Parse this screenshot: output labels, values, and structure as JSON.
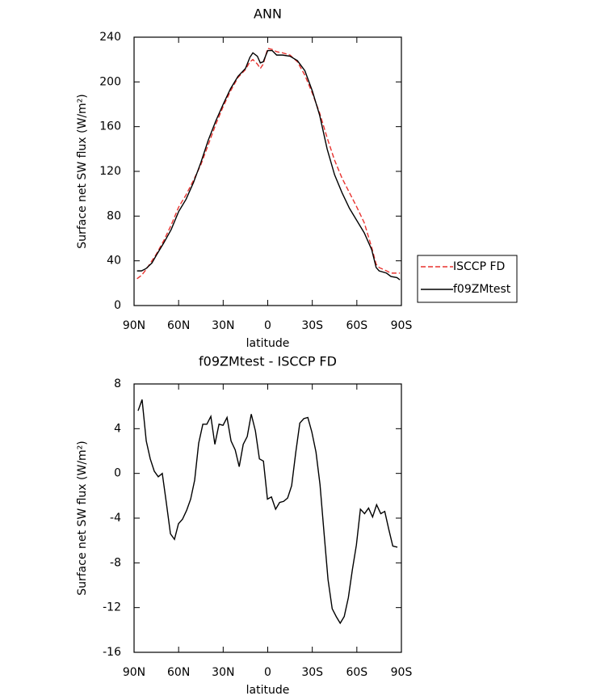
{
  "chart_data": [
    {
      "type": "line",
      "title": "ANN",
      "xlabel": "latitude",
      "ylabel": "Surface net SW flux (W/m²)",
      "x": [
        88,
        85,
        82,
        78,
        75,
        70,
        65,
        60,
        55,
        50,
        45,
        40,
        35,
        30,
        25,
        20,
        15,
        12,
        10,
        7,
        5,
        3,
        0,
        -3,
        -6,
        -10,
        -15,
        -20,
        -25,
        -30,
        -35,
        -40,
        -45,
        -50,
        -55,
        -60,
        -65,
        -70,
        -73,
        -75,
        -80,
        -83,
        -87,
        -89
      ],
      "series": [
        {
          "name": "ISCCP FD",
          "color": "#e8322e",
          "dash": true,
          "values": [
            24,
            27,
            32,
            40,
            46,
            58,
            72,
            88,
            99,
            112,
            126,
            144,
            162,
            178,
            192,
            204,
            211,
            218,
            220,
            216,
            212,
            216,
            230,
            229,
            227,
            226,
            224,
            218,
            206,
            190,
            172,
            150,
            130,
            114,
            101,
            88,
            74,
            52,
            37,
            34,
            31,
            29,
            29,
            29
          ]
        },
        {
          "name": "f09ZMtest",
          "color": "#000000",
          "dash": false,
          "values": [
            31,
            31,
            33,
            38,
            45,
            56,
            68,
            84,
            95,
            110,
            128,
            148,
            165,
            180,
            194,
            205,
            212,
            222,
            226,
            223,
            217,
            218,
            228,
            228,
            224,
            224,
            223,
            219,
            210,
            192,
            170,
            140,
            117,
            101,
            87,
            76,
            65,
            50,
            34,
            31,
            29,
            26,
            25,
            23
          ]
        }
      ],
      "xlim": [
        90,
        -90
      ],
      "xticks": [
        {
          "value": 90,
          "label": "90N"
        },
        {
          "value": 60,
          "label": "60N"
        },
        {
          "value": 30,
          "label": "30N"
        },
        0,
        {
          "value": -30,
          "label": "30S"
        },
        {
          "value": -60,
          "label": "60S"
        },
        {
          "value": -90,
          "label": "90S"
        }
      ],
      "ylim": [
        0,
        240
      ],
      "yticks": [
        0,
        40,
        80,
        120,
        160,
        200,
        240
      ],
      "legend": "right"
    },
    {
      "type": "line",
      "title": "f09ZMtest - ISCCP FD",
      "xlabel": "latitude",
      "ylabel": "Surface net SW flux (W/m²)",
      "x": [
        87.3,
        84.6,
        81.8,
        79.1,
        76.4,
        73.7,
        71,
        68.3,
        65.5,
        62.8,
        60.1,
        57.4,
        54.6,
        51.9,
        49.2,
        46.5,
        43.7,
        41,
        38.3,
        35.6,
        32.8,
        30.1,
        27.4,
        24.7,
        21.9,
        19.2,
        16.5,
        13.8,
        11.1,
        8.3,
        5.6,
        2.9,
        0.2,
        -2.5,
        -5.3,
        -8,
        -10.7,
        -13.4,
        -16.1,
        -18.9,
        -21.6,
        -24.3,
        -27,
        -29.7,
        -32.5,
        -35.2,
        -37.9,
        -40.6,
        -43.4,
        -46.1,
        -48.8,
        -51.5,
        -54.3,
        -57,
        -59.7,
        -62.4,
        -65.2,
        -67.9,
        -70.6,
        -73.3,
        -76.1,
        -78.8,
        -81.5,
        -84.2,
        -87.3
      ],
      "series": [
        {
          "name": "f09ZMtest",
          "color": "#000000",
          "dash": false,
          "values": [
            5.6,
            6.6,
            2.9,
            1.3,
            0.2,
            -0.3,
            0.0,
            -2.6,
            -5.4,
            -5.9,
            -4.5,
            -4.1,
            -3.3,
            -2.3,
            -0.6,
            2.7,
            4.4,
            4.4,
            5.1,
            2.6,
            4.4,
            4.3,
            5.0,
            2.9,
            2.1,
            0.6,
            2.6,
            3.3,
            5.3,
            3.8,
            1.3,
            1.1,
            -2.3,
            -2.1,
            -3.2,
            -2.6,
            -2.5,
            -2.2,
            -1.1,
            1.9,
            4.5,
            4.9,
            5.0,
            3.7,
            1.9,
            -1.0,
            -5.3,
            -9.5,
            -12.1,
            -12.8,
            -13.4,
            -12.8,
            -11.1,
            -8.6,
            -6.4,
            -3.2,
            -3.6,
            -3.1,
            -3.9,
            -2.8,
            -3.6,
            -3.4,
            -5.0,
            -6.5,
            -6.6
          ]
        }
      ],
      "xlim": [
        90,
        -90
      ],
      "xticks": [
        {
          "value": 90,
          "label": "90N"
        },
        {
          "value": 60,
          "label": "60N"
        },
        {
          "value": 30,
          "label": "30N"
        },
        0,
        {
          "value": -30,
          "label": "30S"
        },
        {
          "value": -60,
          "label": "60S"
        },
        {
          "value": -90,
          "label": "90S"
        }
      ],
      "ylim": [
        -16,
        8
      ],
      "yticks": [
        -16,
        -12,
        -8,
        -4,
        0,
        4,
        8
      ]
    }
  ]
}
